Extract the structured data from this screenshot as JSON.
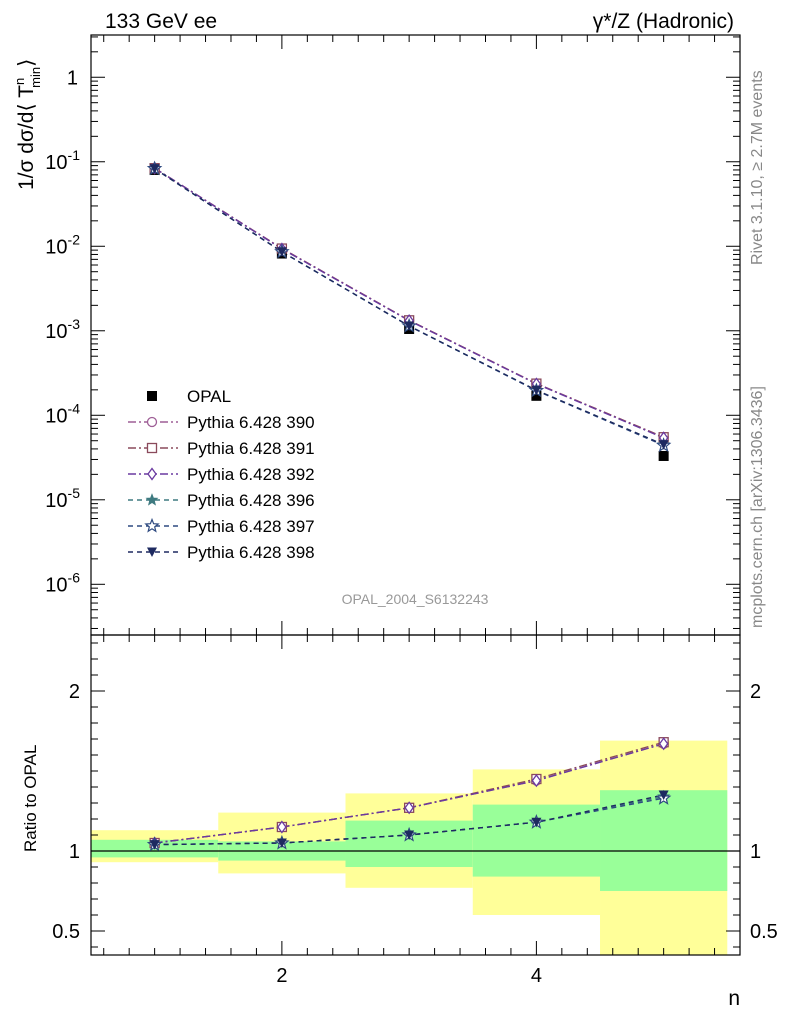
{
  "chart_data": {
    "type": "line",
    "title_left": "133 GeV ee",
    "title_right": "γ*/Z (Hadronic)",
    "ylabel_top_parts": {
      "base": "1/σ dσ/d⟨ T",
      "sup": "n",
      "sub": "min",
      "close": "⟩"
    },
    "ylabel_ratio": "Ratio to OPAL",
    "xlabel": "n",
    "side_text_rivet": "Rivet 3.1.10, ≥ 2.7M events",
    "side_text_mcplots": "mcplots.cern.ch [arXiv:1306.3436]",
    "analysis_label": "OPAL_2004_S6132243",
    "x_range": [
      0.5,
      5.6
    ],
    "x_ticks": [
      {
        "value": 2,
        "label": "2"
      },
      {
        "value": 4,
        "label": "4"
      }
    ],
    "top_y_range_log10": [
      -6.6,
      0.5
    ],
    "top_y_ticks": [
      {
        "exp": 0,
        "base": "1",
        "sup": ""
      },
      {
        "exp": -1,
        "base": "10",
        "sup": "-1"
      },
      {
        "exp": -2,
        "base": "10",
        "sup": "-2"
      },
      {
        "exp": -3,
        "base": "10",
        "sup": "-3"
      },
      {
        "exp": -4,
        "base": "10",
        "sup": "-4"
      },
      {
        "exp": -5,
        "base": "10",
        "sup": "-5"
      },
      {
        "exp": -6,
        "base": "10",
        "sup": "-6"
      }
    ],
    "ratio_y_range": [
      0.35,
      2.35
    ],
    "ratio_y_ticks": [
      {
        "value": 0.5,
        "label": "0.5"
      },
      {
        "value": 1,
        "label": "1"
      },
      {
        "value": 2,
        "label": "2"
      }
    ],
    "bins": [
      {
        "x": 1,
        "lo": 0.5,
        "hi": 1.5,
        "green": [
          0.96,
          1.07
        ],
        "yellow": [
          0.93,
          1.13
        ]
      },
      {
        "x": 2,
        "lo": 1.5,
        "hi": 2.5,
        "green": [
          0.94,
          1.06
        ],
        "yellow": [
          0.86,
          1.24
        ]
      },
      {
        "x": 3,
        "lo": 2.5,
        "hi": 3.5,
        "green": [
          0.9,
          1.19
        ],
        "yellow": [
          0.77,
          1.36
        ]
      },
      {
        "x": 4,
        "lo": 3.5,
        "hi": 4.5,
        "green": [
          0.84,
          1.29
        ],
        "yellow": [
          0.6,
          1.51
        ]
      },
      {
        "x": 5,
        "lo": 4.5,
        "hi": 5.5,
        "green": [
          0.75,
          1.38
        ],
        "yellow": [
          0.35,
          1.69
        ]
      }
    ],
    "data": {
      "name": "OPAL",
      "x": [
        1,
        2,
        3,
        4,
        5
      ],
      "y": [
        0.08,
        0.0082,
        0.00105,
        0.00017,
        3.3e-05
      ]
    },
    "series": [
      {
        "name": "Pythia 6.428 390",
        "color": "#9e5e96",
        "marker": "circle-open",
        "dash": "8,3,2,3",
        "y": [
          0.084,
          0.0094,
          0.00133,
          0.000237,
          5.5e-05
        ],
        "ratio": [
          1.05,
          1.15,
          1.27,
          1.44,
          1.67
        ]
      },
      {
        "name": "Pythia 6.428 391",
        "color": "#8a4a5c",
        "marker": "square-open",
        "dash": "8,3,2,3",
        "y": [
          0.084,
          0.0094,
          0.00133,
          0.000237,
          5.5e-05
        ],
        "ratio": [
          1.05,
          1.15,
          1.27,
          1.45,
          1.68
        ]
      },
      {
        "name": "Pythia 6.428 392",
        "color": "#6a3aa0",
        "marker": "diamond-open",
        "dash": "8,3,2,3",
        "y": [
          0.084,
          0.0093,
          0.00132,
          0.000235,
          5.4e-05
        ],
        "ratio": [
          1.05,
          1.15,
          1.27,
          1.44,
          1.67
        ]
      },
      {
        "name": "Pythia 6.428 396",
        "color": "#3e7a80",
        "marker": "star-filled",
        "dash": "5,4",
        "y": [
          0.083,
          0.0086,
          0.00114,
          0.000197,
          4.5e-05
        ],
        "ratio": [
          1.04,
          1.05,
          1.1,
          1.18,
          1.34
        ]
      },
      {
        "name": "Pythia 6.428 397",
        "color": "#2e4a80",
        "marker": "star-open",
        "dash": "5,4",
        "y": [
          0.083,
          0.0086,
          0.00114,
          0.000196,
          4.4e-05
        ],
        "ratio": [
          1.04,
          1.05,
          1.1,
          1.18,
          1.33
        ]
      },
      {
        "name": "Pythia 6.428 398",
        "color": "#1e2a60",
        "marker": "triangle-down-filled",
        "dash": "5,4",
        "y": [
          0.083,
          0.0086,
          0.00114,
          0.000198,
          4.5e-05
        ],
        "ratio": [
          1.04,
          1.05,
          1.1,
          1.18,
          1.35
        ]
      }
    ]
  }
}
